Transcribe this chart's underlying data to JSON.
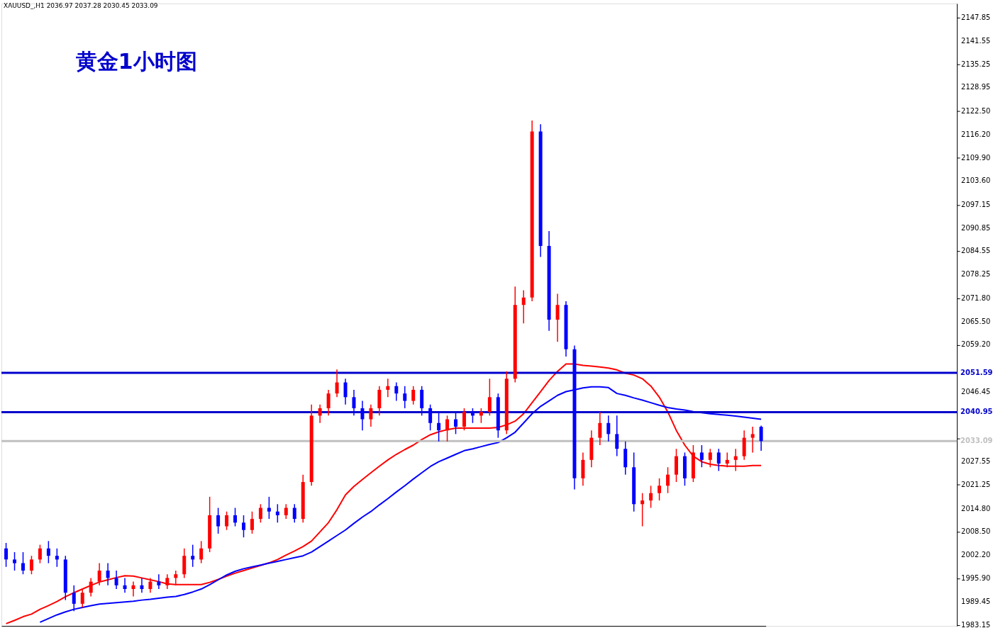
{
  "chart_data": {
    "type": "candlestick",
    "title": "黄金1小时图",
    "annotations": [
      "XAUUSD_,H1  2036.97 2037.28 2030.45 2033.09"
    ],
    "categories": [
      null,
      null,
      null,
      null,
      null,
      null,
      null,
      null,
      null,
      null,
      null,
      null,
      null,
      null,
      null,
      null,
      null,
      null,
      null,
      null,
      null,
      null,
      null,
      null,
      null,
      null,
      null,
      null,
      null,
      null,
      null,
      null,
      null,
      null,
      null,
      null,
      null,
      null,
      null,
      null,
      null,
      null,
      null,
      null,
      null,
      null,
      null,
      null,
      null,
      null,
      null,
      null,
      null,
      null,
      null,
      null,
      null,
      null,
      null,
      null,
      null,
      null,
      null,
      null,
      null,
      null,
      null,
      null,
      null,
      null,
      null,
      null,
      null,
      null,
      null,
      null,
      null,
      null,
      null,
      null,
      null,
      null,
      null,
      null,
      null,
      null,
      null,
      null,
      null,
      null
    ],
    "ohlc": [
      [
        2004,
        2005.5,
        1999,
        2001
      ],
      [
        2001,
        2003,
        1998,
        2000
      ],
      [
        2000,
        2003,
        1997,
        1998
      ],
      [
        1998,
        2002,
        1997,
        2001
      ],
      [
        2001,
        2005,
        2000,
        2004
      ],
      [
        2004,
        2006,
        2000,
        2002
      ],
      [
        2002,
        2004,
        1999,
        2001
      ],
      [
        2001,
        2002,
        1990,
        1992
      ],
      [
        1992,
        1994,
        1987,
        1989
      ],
      [
        1989,
        1993,
        1988,
        1992
      ],
      [
        1992,
        1996,
        1991,
        1995
      ],
      [
        1995,
        2000,
        1994,
        1998
      ],
      [
        1998,
        2000,
        1994,
        1996
      ],
      [
        1996,
        1998,
        1993,
        1994
      ],
      [
        1994,
        1996,
        1992,
        1993
      ],
      [
        1993,
        1995,
        1991,
        1994
      ],
      [
        1994,
        1996,
        1992,
        1993
      ],
      [
        1993,
        1996,
        1992,
        1995
      ],
      [
        1995,
        1997,
        1993,
        1994
      ],
      [
        1994,
        1997,
        1993,
        1996
      ],
      [
        1996,
        1998,
        1994,
        1997
      ],
      [
        1997,
        2004,
        1996,
        2002
      ],
      [
        2002,
        2005,
        1999,
        2001
      ],
      [
        2001,
        2006,
        2000,
        2004
      ],
      [
        2004,
        2018,
        2003,
        2013
      ],
      [
        2013,
        2015,
        2008,
        2010
      ],
      [
        2010,
        2014,
        2009,
        2013
      ],
      [
        2013,
        2015,
        2010,
        2011
      ],
      [
        2011,
        2013,
        2007,
        2009
      ],
      [
        2009,
        2014,
        2008,
        2012
      ],
      [
        2012,
        2016,
        2011,
        2015
      ],
      [
        2015,
        2018,
        2012,
        2014
      ],
      [
        2014,
        2016,
        2011,
        2013
      ],
      [
        2013,
        2016,
        2012,
        2015
      ],
      [
        2015,
        2016,
        2011,
        2012
      ],
      [
        2012,
        2024,
        2011,
        2022
      ],
      [
        2022,
        2043,
        2021,
        2040
      ],
      [
        2040,
        2043,
        2038,
        2042
      ],
      [
        2042,
        2047,
        2040,
        2046
      ],
      [
        2046,
        2052.5,
        2045,
        2049
      ],
      [
        2049,
        2050,
        2043,
        2045
      ],
      [
        2045,
        2047,
        2040,
        2042
      ],
      [
        2042,
        2044,
        2036,
        2039
      ],
      [
        2039,
        2043,
        2037,
        2042
      ],
      [
        2042,
        2048,
        2040,
        2047
      ],
      [
        2047,
        2050,
        2045,
        2048
      ],
      [
        2048,
        2049,
        2044,
        2046
      ],
      [
        2046,
        2048,
        2042,
        2044
      ],
      [
        2044,
        2048,
        2043,
        2047
      ],
      [
        2047,
        2048,
        2040,
        2042
      ],
      [
        2042,
        2043,
        2036,
        2038
      ],
      [
        2038,
        2041,
        2033,
        2036
      ],
      [
        2036,
        2040,
        2033,
        2039
      ],
      [
        2039,
        2041,
        2035,
        2037
      ],
      [
        2037,
        2042,
        2036,
        2041
      ],
      [
        2041,
        2042,
        2038,
        2040
      ],
      [
        2040,
        2042,
        2038,
        2041
      ],
      [
        2041,
        2050,
        2040,
        2045
      ],
      [
        2045,
        2046,
        2034,
        2036
      ],
      [
        2036,
        2052,
        2035,
        2050
      ],
      [
        2050,
        2075,
        2049,
        2070
      ],
      [
        2070,
        2074,
        2065,
        2072
      ],
      [
        2072,
        2120,
        2071,
        2117
      ],
      [
        2117,
        2119,
        2083,
        2086
      ],
      [
        2086,
        2090,
        2063,
        2066
      ],
      [
        2066,
        2073,
        2060,
        2070
      ],
      [
        2070,
        2071,
        2056,
        2058
      ],
      [
        2058,
        2059,
        2020,
        2023
      ],
      [
        2023,
        2030,
        2021,
        2028
      ],
      [
        2028,
        2036,
        2026,
        2034
      ],
      [
        2034,
        2041,
        2032,
        2038
      ],
      [
        2038,
        2040,
        2033,
        2035
      ],
      [
        2035,
        2040,
        2029,
        2031
      ],
      [
        2031,
        2033,
        2024,
        2026
      ],
      [
        2026,
        2030,
        2014,
        2016
      ],
      [
        2016,
        2019,
        2010,
        2017
      ],
      [
        2017,
        2021,
        2015,
        2019
      ],
      [
        2019,
        2023,
        2017,
        2021
      ],
      [
        2021,
        2026,
        2019,
        2024
      ],
      [
        2024,
        2031,
        2022,
        2029
      ],
      [
        2029,
        2030,
        2021,
        2023
      ],
      [
        2023,
        2032,
        2022,
        2030
      ],
      [
        2030,
        2032,
        2026,
        2028
      ],
      [
        2028,
        2031,
        2026,
        2030
      ],
      [
        2030,
        2031,
        2025,
        2027
      ],
      [
        2027,
        2030,
        2026,
        2028
      ],
      [
        2028,
        2031,
        2025,
        2029
      ],
      [
        2029,
        2036,
        2028,
        2034
      ],
      [
        2034,
        2037,
        2030,
        2035
      ],
      [
        2036.97,
        2037.28,
        2030.45,
        2033.09
      ]
    ],
    "colors": [
      "#0000ff",
      "#0000ff",
      "#0000ff",
      "#ff0000",
      "#ff0000",
      "#0000ff",
      "#0000ff",
      "#0000ff",
      "#0000ff",
      "#ff0000",
      "#ff0000",
      "#ff0000",
      "#0000ff",
      "#0000ff",
      "#0000ff",
      "#ff0000",
      "#0000ff",
      "#ff0000",
      "#0000ff",
      "#ff0000",
      "#ff0000",
      "#ff0000",
      "#0000ff",
      "#ff0000",
      "#ff0000",
      "#0000ff",
      "#ff0000",
      "#0000ff",
      "#0000ff",
      "#ff0000",
      "#ff0000",
      "#0000ff",
      "#0000ff",
      "#ff0000",
      "#0000ff",
      "#ff0000",
      "#ff0000",
      "#ff0000",
      "#ff0000",
      "#ff0000",
      "#0000ff",
      "#0000ff",
      "#0000ff",
      "#ff0000",
      "#ff0000",
      "#ff0000",
      "#0000ff",
      "#0000ff",
      "#ff0000",
      "#0000ff",
      "#0000ff",
      "#0000ff",
      "#ff0000",
      "#0000ff",
      "#ff0000",
      "#0000ff",
      "#ff0000",
      "#ff0000",
      "#0000ff",
      "#ff0000",
      "#ff0000",
      "#ff0000",
      "#ff0000",
      "#0000ff",
      "#0000ff",
      "#ff0000",
      "#0000ff",
      "#0000ff",
      "#ff0000",
      "#ff0000",
      "#ff0000",
      "#0000ff",
      "#0000ff",
      "#0000ff",
      "#0000ff",
      "#ff0000",
      "#ff0000",
      "#ff0000",
      "#ff0000",
      "#ff0000",
      "#0000ff",
      "#ff0000",
      "#0000ff",
      "#ff0000",
      "#0000ff",
      "#ff0000",
      "#ff0000",
      "#ff0000",
      "#ff0000",
      "#0000ff"
    ],
    "series": [
      {
        "type": "line",
        "color": "#ff0000",
        "values": [
          1983.6,
          1984.5,
          1985.5,
          1986.2,
          1987.5,
          1988.5,
          1989.6,
          1990.9,
          1992,
          1993,
          1994,
          1994.9,
          1995.5,
          1996.1,
          1996.6,
          1996.5,
          1996,
          1995.5,
          1995,
          1994.4,
          1994.2,
          1994.2,
          1994.2,
          1994.2,
          1994.8,
          1995.6,
          1996.5,
          1997.3,
          1998,
          1998.7,
          1999.4,
          2000.1,
          2001,
          2002.2,
          2003.3,
          2004.5,
          2006,
          2008.5,
          2011,
          2014.5,
          2018.5,
          2020.8,
          2022.7,
          2024.5,
          2026.3,
          2028,
          2029.5,
          2030.8,
          2032,
          2033.5,
          2034.8,
          2035.6,
          2036.2,
          2036.6,
          2036.6,
          2036.6,
          2036.6,
          2036.6,
          2036.8,
          2037.5,
          2038.5,
          2040.5,
          2043.5,
          2046.5,
          2049.5,
          2052,
          2054,
          2054,
          2053.6,
          2053.4,
          2053.2,
          2052.9,
          2052.4,
          2051.5,
          2051,
          2050,
          2048,
          2045,
          2041,
          2036,
          2032,
          2029,
          2027.5,
          2026.8,
          2026.5,
          2026.3,
          2026.3,
          2026.3,
          2026.5,
          2026.5
        ]
      },
      {
        "type": "line",
        "color": "#0000ff",
        "values": [
          null,
          null,
          null,
          null,
          1984,
          1985,
          1986,
          1986.8,
          1987.5,
          1988,
          1988.5,
          1988.9,
          1989.1,
          1989.3,
          1989.5,
          1989.7,
          1990,
          1990.2,
          1990.5,
          1990.8,
          1991,
          1991.5,
          1992.2,
          1993,
          1994.2,
          1995.5,
          1996.8,
          1997.8,
          1998.5,
          1999,
          1999.5,
          2000,
          2000.5,
          2001,
          2001.5,
          2002,
          2003,
          2004.5,
          2006,
          2007.5,
          2009,
          2010.8,
          2012.5,
          2014,
          2015.8,
          2017.5,
          2019.3,
          2021,
          2022.8,
          2024.5,
          2026.2,
          2027.5,
          2028.5,
          2029.5,
          2030.5,
          2031,
          2031.6,
          2032.2,
          2032.7,
          2034,
          2035.5,
          2038,
          2040.5,
          2042.5,
          2044,
          2045.5,
          2046.5,
          2047,
          2047.5,
          2047.8,
          2047.8,
          2047.6,
          2046,
          2045.5,
          2044.8,
          2044.2,
          2043.5,
          2042.8,
          2042.2,
          2041.8,
          2041.5,
          2041.1,
          2040.8,
          2040.5,
          2040.3,
          2040.1,
          2039.9,
          2039.6,
          2039.3,
          2039
        ]
      }
    ],
    "ylim": [
      1983.0,
      2151.7
    ],
    "yticks": [
      {
        "value": 1983.15,
        "label": "1983.15"
      },
      {
        "value": 1989.45,
        "label": "1989.45"
      },
      {
        "value": 1995.9,
        "label": "1995.90"
      },
      {
        "value": 2002.2,
        "label": "2002.20"
      },
      {
        "value": 2008.5,
        "label": "2008.50"
      },
      {
        "value": 2014.8,
        "label": "2014.80"
      },
      {
        "value": 2021.25,
        "label": "2021.25"
      },
      {
        "value": 2027.55,
        "label": "2027.55"
      },
      {
        "value": 2033.85,
        "label": null
      },
      {
        "value": 2046.45,
        "label": "2046.45"
      },
      {
        "value": 2059.2,
        "label": "2059.20"
      },
      {
        "value": 2065.5,
        "label": "2065.50"
      },
      {
        "value": 2071.8,
        "label": "2071.80"
      },
      {
        "value": 2078.25,
        "label": "2078.25"
      },
      {
        "value": 2084.55,
        "label": "2084.55"
      },
      {
        "value": 2090.85,
        "label": "2090.85"
      },
      {
        "value": 2097.15,
        "label": "2097.15"
      },
      {
        "value": 2103.6,
        "label": "2103.60"
      },
      {
        "value": 2109.9,
        "label": "2109.90"
      },
      {
        "value": 2116.2,
        "label": "2116.20"
      },
      {
        "value": 2122.5,
        "label": "2122.50"
      },
      {
        "value": 2128.95,
        "label": "2128.95"
      },
      {
        "value": 2135.25,
        "label": "2135.25"
      },
      {
        "value": 2141.55,
        "label": "2141.55"
      },
      {
        "value": 2147.85,
        "label": "2147.85"
      }
    ],
    "ref_lines": [
      {
        "axis": "y",
        "value": 2051.59,
        "label": "2051.59",
        "color": "#0000cc"
      },
      {
        "axis": "y",
        "value": 2040.95,
        "label": "2040.95",
        "color": "#0000cc"
      },
      {
        "axis": "y",
        "value": 2033.09,
        "label": "2033.09",
        "color": "#c0c0c0"
      }
    ],
    "grid": false,
    "tick_labels": "y"
  }
}
